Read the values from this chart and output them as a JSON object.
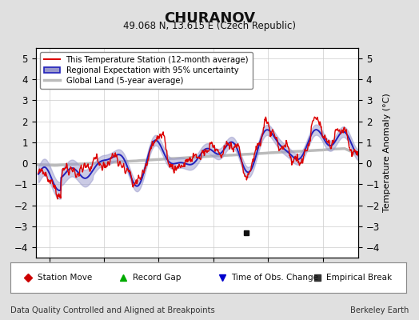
{
  "title": "CHURANOV",
  "subtitle": "49.068 N, 13.615 E (Czech Republic)",
  "ylabel": "Temperature Anomaly (°C)",
  "xlabel_left": "Data Quality Controlled and Aligned at Breakpoints",
  "xlabel_right": "Berkeley Earth",
  "ylim": [
    -4.5,
    5.5
  ],
  "xlim": [
    1957.5,
    2016.5
  ],
  "yticks": [
    -4,
    -3,
    -2,
    -1,
    0,
    1,
    2,
    3,
    4,
    5
  ],
  "xticks": [
    1960,
    1970,
    1980,
    1990,
    2000,
    2010
  ],
  "bg_color": "#e0e0e0",
  "plot_bg_color": "#ffffff",
  "grid_color": "#cccccc",
  "red_color": "#dd0000",
  "blue_color": "#2222bb",
  "blue_fill_color": "#9999cc",
  "gray_color": "#bbbbbb",
  "legend_items": [
    "This Temperature Station (12-month average)",
    "Regional Expectation with 95% uncertainty",
    "Global Land (5-year average)"
  ],
  "marker_legend": [
    {
      "color": "#cc0000",
      "marker": "D",
      "label": "Station Move"
    },
    {
      "color": "#00aa00",
      "marker": "^",
      "label": "Record Gap"
    },
    {
      "color": "#0000cc",
      "marker": "v",
      "label": "Time of Obs. Change"
    },
    {
      "color": "#333333",
      "marker": "s",
      "label": "Empirical Break"
    }
  ],
  "empirical_break_x": 1996.0,
  "empirical_break_y": -3.3
}
